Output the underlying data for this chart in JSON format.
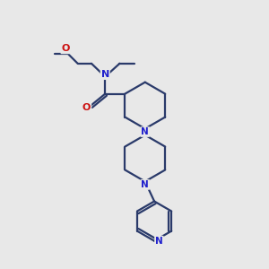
{
  "background_color": "#e8e8e8",
  "bond_color": "#2a3a6a",
  "nitrogen_color": "#2020cc",
  "oxygen_color": "#cc1010",
  "line_width": 1.6,
  "figsize": [
    3.0,
    3.0
  ],
  "dpi": 100,
  "xlim": [
    0,
    10
  ],
  "ylim": [
    0,
    10
  ]
}
